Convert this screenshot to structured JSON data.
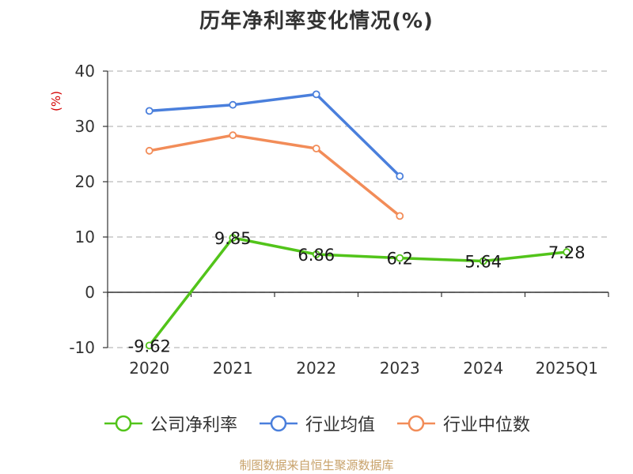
{
  "chart_data": {
    "type": "line",
    "title": "历年净利率变化情况(%)",
    "ylabel": "(%)",
    "categories": [
      "2020",
      "2021",
      "2022",
      "2023",
      "2024",
      "2025Q1"
    ],
    "ylim": [
      -10,
      40
    ],
    "yticks": [
      "-10",
      "0",
      "10",
      "20",
      "30",
      "40"
    ],
    "grid": true,
    "legend_position": "bottom",
    "series": [
      {
        "name": "公司净利率",
        "color": "#52c41a",
        "values": [
          -9.62,
          9.85,
          6.86,
          6.2,
          5.64,
          7.28
        ],
        "labels": [
          "-9.62",
          "9.85",
          "6.86",
          "6.2",
          "5.64",
          "7.28"
        ]
      },
      {
        "name": "行业均值",
        "color": "#4a7fdc",
        "values": [
          32.8,
          33.9,
          35.8,
          21.0,
          null,
          null
        ]
      },
      {
        "name": "行业中位数",
        "color": "#f28c58",
        "values": [
          25.6,
          28.4,
          26.0,
          13.8,
          null,
          null
        ]
      }
    ]
  },
  "footer": {
    "source": "制图数据来自恒生聚源数据库"
  }
}
